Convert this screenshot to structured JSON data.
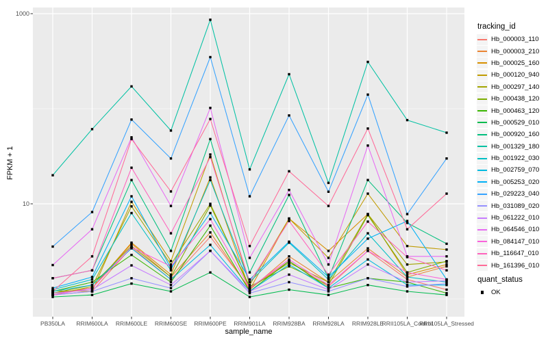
{
  "legend": {
    "tracking_title": "tracking_id",
    "quant_title": "quant_status",
    "quant_value": "OK"
  },
  "chart_data": {
    "type": "line",
    "title": "",
    "xlabel": "sample_name",
    "ylabel": "FPKM + 1",
    "x_type": "categorical",
    "y_scale": "log10",
    "ylim": [
      1,
      1000
    ],
    "y_breaks": [
      10,
      1000
    ],
    "y_minor_breaks": [
      1,
      100
    ],
    "y_tick_labels": [
      "10",
      "1000"
    ],
    "grid": true,
    "legend_position": "right",
    "panel_bg": "#EBEBEB",
    "grid_color": "#FFFFFF",
    "point_color": "#000000",
    "point_shape": "square",
    "tick_label_color": "#4D4D4D",
    "categories": [
      "PB350LA",
      "RRIM600LA",
      "RRIM600LE",
      "RRIM600SE",
      "RRIM600PE",
      "RRIM901LA",
      "RRIM928BA",
      "RRIM928LA",
      "RRIM928LE",
      "RRII105LA_Control",
      "RRII105LA_Stressed"
    ],
    "series": [
      {
        "name": "Hb_000003_110",
        "color": "#F8766D",
        "values": [
          1.1,
          1.2,
          3.5,
          1.6,
          4.5,
          1.3,
          2.5,
          1.35,
          3.2,
          1.6,
          1.25
        ]
      },
      {
        "name": "Hb_000003_210",
        "color": "#EA8331",
        "values": [
          1.15,
          1.3,
          3.8,
          1.7,
          5.0,
          1.25,
          2.8,
          1.5,
          3.4,
          1.7,
          2.2
        ]
      },
      {
        "name": "Hb_000025_160",
        "color": "#D89000",
        "values": [
          1.15,
          1.3,
          3.9,
          1.8,
          19,
          1.25,
          7.0,
          3.2,
          7.8,
          1.8,
          2.3
        ]
      },
      {
        "name": "Hb_000120_940",
        "color": "#C09B00",
        "values": [
          1.22,
          1.2,
          10.5,
          2.5,
          33,
          1.4,
          7.0,
          2.7,
          12.8,
          3.6,
          3.3
        ]
      },
      {
        "name": "Hb_000297_140",
        "color": "#A3A500",
        "values": [
          1.1,
          1.35,
          9.4,
          2.3,
          10,
          1.3,
          2.4,
          1.5,
          7.8,
          2.3,
          2.45
        ]
      },
      {
        "name": "Hb_000438_120",
        "color": "#7CAE00",
        "values": [
          1.15,
          1.4,
          3.6,
          1.7,
          9.6,
          1.35,
          2.2,
          1.4,
          7.6,
          1.9,
          2.5
        ]
      },
      {
        "name": "Hb_000463_120",
        "color": "#39B600",
        "values": [
          1.2,
          1.5,
          2.9,
          1.5,
          5.9,
          1.2,
          2.5,
          1.3,
          1.65,
          1.5,
          1.15
        ]
      },
      {
        "name": "Hb_000529_010",
        "color": "#00BB4E",
        "values": [
          1.05,
          1.1,
          1.45,
          1.2,
          1.9,
          1.05,
          1.25,
          1.1,
          1.4,
          1.2,
          1.1
        ]
      },
      {
        "name": "Hb_000920_160",
        "color": "#00BF7D",
        "values": [
          1.65,
          2.0,
          17.8,
          3.2,
          48,
          1.9,
          12.4,
          1.65,
          17.8,
          6.3,
          3.8
        ]
      },
      {
        "name": "Hb_001329_180",
        "color": "#00C1A3",
        "values": [
          20,
          61,
          172,
          59,
          863,
          23,
          231,
          16.6,
          311,
          76,
          56
        ]
      },
      {
        "name": "Hb_001922_030",
        "color": "#00BFC4",
        "values": [
          1.25,
          1.6,
          8.0,
          2.0,
          17.8,
          1.5,
          3.9,
          1.6,
          4.9,
          1.7,
          1.5
        ]
      },
      {
        "name": "Hb_002759_070",
        "color": "#00BAE0",
        "values": [
          1.2,
          1.4,
          3.4,
          1.6,
          3.7,
          1.2,
          2.3,
          1.3,
          2.6,
          1.4,
          1.4
        ]
      },
      {
        "name": "Hb_005253_020",
        "color": "#00B0F6",
        "values": [
          1.3,
          1.7,
          12,
          2.1,
          8.0,
          1.6,
          4.0,
          1.7,
          4.3,
          6.6,
          1.6
        ]
      },
      {
        "name": "Hb_029223_040",
        "color": "#35A2FF",
        "values": [
          3.55,
          8.2,
          77,
          30,
          349,
          12,
          85,
          13.4,
          141,
          7.8,
          30
        ]
      },
      {
        "name": "Hb_031089_020",
        "color": "#9590FF",
        "values": [
          1.1,
          1.2,
          1.65,
          1.3,
          3.2,
          1.15,
          1.5,
          1.2,
          1.65,
          1.35,
          1.45
        ]
      },
      {
        "name": "Hb_061222_010",
        "color": "#C77CFF",
        "values": [
          1.15,
          1.25,
          2.25,
          1.4,
          3.2,
          1.2,
          1.8,
          1.25,
          2.3,
          1.5,
          1.55
        ]
      },
      {
        "name": "Hb_064546_010",
        "color": "#E76BF3",
        "values": [
          2.27,
          5.4,
          50,
          9.5,
          102,
          2.7,
          14,
          2.3,
          41,
          2.8,
          2.8
        ]
      },
      {
        "name": "Hb_084147_010",
        "color": "#FA62DB",
        "values": [
          1.1,
          1.3,
          3.5,
          2.2,
          6.9,
          1.3,
          2.6,
          1.4,
          3.2,
          1.9,
          1.6
        ]
      },
      {
        "name": "Hb_116647_010",
        "color": "#FF62BC",
        "values": [
          1.65,
          2.0,
          24,
          4.9,
          31,
          1.5,
          6.6,
          1.8,
          6.5,
          2.75,
          2.0
        ]
      },
      {
        "name": "Hb_161396_010",
        "color": "#FF6A98",
        "values": [
          1.2,
          2.8,
          48,
          13.5,
          78,
          3.6,
          22,
          9.5,
          62,
          5.4,
          12.8
        ]
      }
    ]
  }
}
